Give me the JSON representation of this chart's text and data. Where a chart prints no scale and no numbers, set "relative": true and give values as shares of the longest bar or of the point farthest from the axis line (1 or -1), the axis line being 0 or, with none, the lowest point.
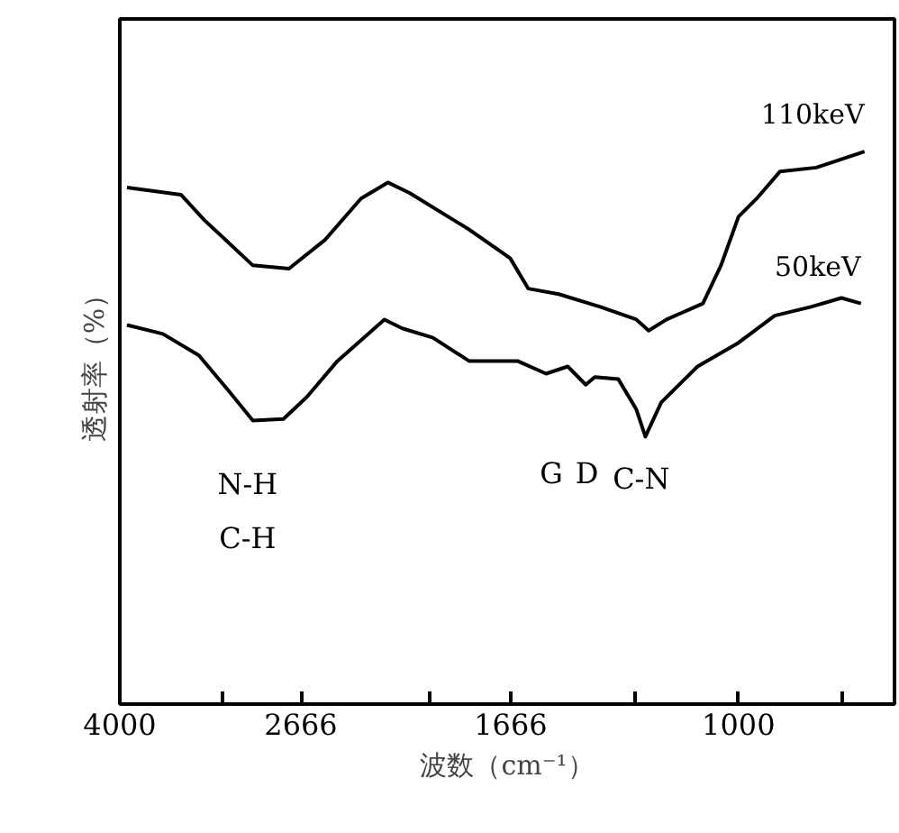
{
  "chart_data": {
    "type": "line",
    "relative": true,
    "xlabel": "波数（cm⁻¹）",
    "ylabel": "透射率（%）",
    "log": "x",
    "xlim": [
      4000,
      705
    ],
    "xticks": [
      4000,
      {
        "value": 3175,
        "label": null
      },
      2666,
      {
        "value": 2000,
        "label": null
      },
      1666,
      {
        "value": 1260,
        "label": null
      },
      1000,
      {
        "value": 791,
        "label": null
      }
    ],
    "grid": false,
    "marker": "none",
    "line_style": "solid",
    "series": [
      {
        "name": "110keV",
        "color": "#000000",
        "x": [
          3936,
          3488,
          3310,
          2969,
          2738,
          2526,
          2330,
          2194,
          2090,
          1829,
          1668,
          1602,
          1496,
          1363,
          1257,
          1223,
          1175,
          1083,
          1040,
          1000,
          960,
          911,
          840,
          754
        ],
        "values": [
          0.935,
          0.922,
          0.876,
          0.794,
          0.788,
          0.84,
          0.915,
          0.944,
          0.925,
          0.859,
          0.807,
          0.752,
          0.742,
          0.719,
          0.696,
          0.676,
          0.696,
          0.725,
          0.794,
          0.882,
          0.915,
          0.964,
          0.971,
          1.0
        ]
      },
      {
        "name": "50keV",
        "color": "#000000",
        "x": [
          3936,
          3632,
          3350,
          3128,
          2969,
          2772,
          2630,
          2456,
          2211,
          2124,
          1983,
          1829,
          1641,
          1539,
          1466,
          1408,
          1380,
          1309,
          1257,
          1232,
          1189,
          1096,
          1000,
          922,
          850,
          794,
          760
        ],
        "values": [
          0.686,
          0.67,
          0.631,
          0.565,
          0.513,
          0.516,
          0.556,
          0.621,
          0.696,
          0.68,
          0.663,
          0.621,
          0.621,
          0.598,
          0.611,
          0.578,
          0.592,
          0.588,
          0.533,
          0.484,
          0.546,
          0.611,
          0.654,
          0.703,
          0.719,
          0.735,
          0.725
        ]
      }
    ],
    "annotations": [
      "N-H",
      "C-H",
      "G",
      "D",
      "C-N"
    ]
  }
}
